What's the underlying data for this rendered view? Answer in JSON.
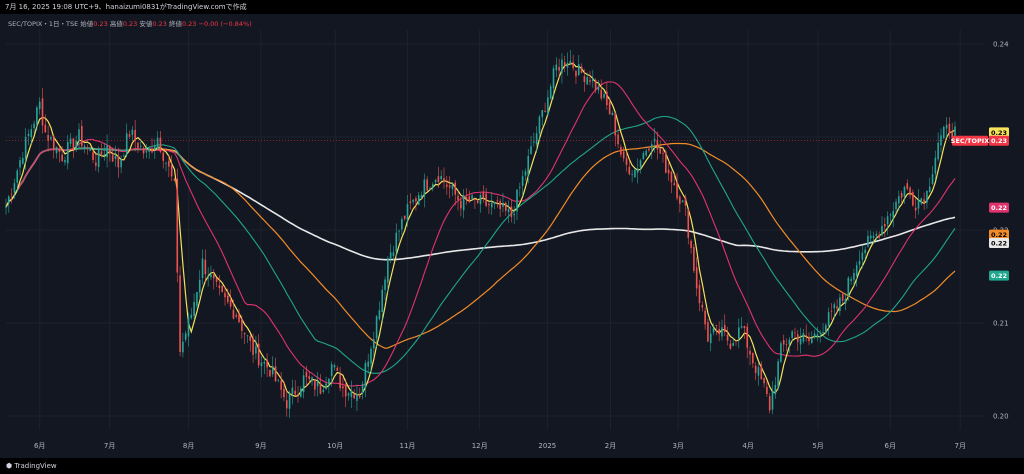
{
  "header": {
    "caption": "7月 16, 2025 19:08 UTC+9、hanaizumi0831がTradingView.comで作成",
    "symbol_line": "SEC/TOPIX・1日・TSE",
    "o_label": "始値",
    "o_value": "0.23",
    "h_label": "高値",
    "h_value": "0.23",
    "l_label": "安値",
    "l_value": "0.23",
    "c_label": "終値",
    "c_value": "0.23",
    "change": "−0.00 (−0.84%)"
  },
  "footer": {
    "brand": "TradingView"
  },
  "colors": {
    "background": "#131722",
    "up": "#26a69a",
    "down": "#ef5350",
    "ma_yellow": "#f5e35a",
    "ma_pink": "#e0336d",
    "ma_teal": "#1fa68c",
    "ma_orange": "#f28c28",
    "ma_white": "#e8e8e8",
    "grid": "#1e222d",
    "axis_text": "#b2b5be"
  },
  "chart_data": {
    "type": "candlestick",
    "x_ticks": [
      "6月",
      "7月",
      "8月",
      "9月",
      "10月",
      "11月",
      "12月",
      "2025",
      "2月",
      "3月",
      "4月",
      "5月",
      "6月",
      "7月"
    ],
    "y_ticks": [
      0.24,
      0.23,
      0.22,
      0.21,
      0.2
    ],
    "ylim": [
      0.1985,
      0.2415
    ],
    "price_labels": [
      {
        "text": "0.23",
        "value": 0.2305,
        "color": "#f5e35a",
        "text_color": "#000"
      },
      {
        "text": "SEC/TOPIX",
        "value": 0.2296,
        "color": "#f23645",
        "text_color": "#fff"
      },
      {
        "text": "0.23",
        "value": 0.2296,
        "color": "#f23645",
        "text_color": "#fff"
      },
      {
        "text": "0.22",
        "value": 0.2224,
        "color": "#e0336d",
        "text_color": "#fff"
      },
      {
        "text": "0.22",
        "value": 0.2195,
        "color": "#f28c28",
        "text_color": "#000"
      },
      {
        "text": "0.22",
        "value": 0.2186,
        "color": "#e8e8e8",
        "text_color": "#000"
      },
      {
        "text": "0.22",
        "value": 0.2151,
        "color": "#1fa68c",
        "text_color": "#fff"
      }
    ],
    "anchors": [
      [
        0,
        0.2225
      ],
      [
        6,
        0.2285
      ],
      [
        12,
        0.2335
      ],
      [
        14,
        0.2305
      ],
      [
        20,
        0.228
      ],
      [
        26,
        0.23
      ],
      [
        32,
        0.2275
      ],
      [
        36,
        0.229
      ],
      [
        40,
        0.227
      ],
      [
        44,
        0.2305
      ],
      [
        50,
        0.228
      ],
      [
        54,
        0.23
      ],
      [
        58,
        0.2265
      ],
      [
        60,
        0.2245
      ],
      [
        62,
        0.207
      ],
      [
        66,
        0.211
      ],
      [
        70,
        0.2165
      ],
      [
        76,
        0.213
      ],
      [
        82,
        0.211
      ],
      [
        88,
        0.207
      ],
      [
        94,
        0.205
      ],
      [
        100,
        0.2015
      ],
      [
        106,
        0.204
      ],
      [
        112,
        0.203
      ],
      [
        116,
        0.2055
      ],
      [
        120,
        0.203
      ],
      [
        126,
        0.2025
      ],
      [
        132,
        0.2105
      ],
      [
        136,
        0.217
      ],
      [
        142,
        0.2215
      ],
      [
        148,
        0.2245
      ],
      [
        154,
        0.226
      ],
      [
        158,
        0.2245
      ],
      [
        162,
        0.223
      ],
      [
        168,
        0.223
      ],
      [
        174,
        0.2225
      ],
      [
        180,
        0.2215
      ],
      [
        184,
        0.2255
      ],
      [
        188,
        0.2295
      ],
      [
        192,
        0.2335
      ],
      [
        196,
        0.2375
      ],
      [
        200,
        0.2385
      ],
      [
        204,
        0.237
      ],
      [
        208,
        0.2365
      ],
      [
        212,
        0.2345
      ],
      [
        216,
        0.232
      ],
      [
        220,
        0.227
      ],
      [
        224,
        0.2265
      ],
      [
        230,
        0.23
      ],
      [
        234,
        0.2275
      ],
      [
        238,
        0.225
      ],
      [
        242,
        0.222
      ],
      [
        246,
        0.214
      ],
      [
        250,
        0.2085
      ],
      [
        254,
        0.209
      ],
      [
        258,
        0.208
      ],
      [
        262,
        0.2095
      ],
      [
        266,
        0.206
      ],
      [
        270,
        0.203
      ],
      [
        272,
        0.201
      ],
      [
        276,
        0.207
      ],
      [
        280,
        0.209
      ],
      [
        286,
        0.208
      ],
      [
        292,
        0.21
      ],
      [
        298,
        0.2125
      ],
      [
        304,
        0.2175
      ],
      [
        310,
        0.2195
      ],
      [
        316,
        0.2225
      ],
      [
        320,
        0.2245
      ],
      [
        324,
        0.223
      ],
      [
        328,
        0.224
      ],
      [
        332,
        0.2295
      ],
      [
        336,
        0.231
      ],
      [
        338,
        0.2305
      ]
    ],
    "ma_periods": {
      "yellow": 5,
      "pink": 25,
      "teal": 50,
      "orange": 75,
      "white": 200
    }
  }
}
